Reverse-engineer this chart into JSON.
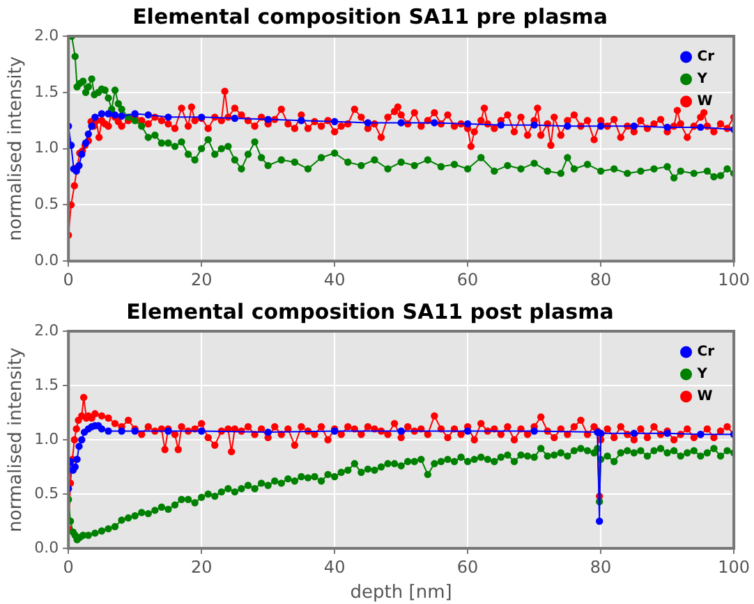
{
  "chart_data": [
    {
      "type": "line",
      "title": "Elemental composition SA11 pre plasma",
      "ylabel": "normalised intensity",
      "xlim": [
        0,
        100
      ],
      "xticks": [
        0,
        20,
        40,
        60,
        80,
        100
      ],
      "ylim": [
        0,
        2
      ],
      "yticks": [
        {
          "value": 0,
          "label": "0.0"
        },
        {
          "value": 0.5,
          "label": "0.5"
        },
        {
          "value": 1,
          "label": "1.0"
        },
        {
          "value": 1.5,
          "label": "1.5"
        },
        {
          "value": 2,
          "label": "2.0"
        }
      ],
      "grid": true,
      "legend": "top right",
      "marker": "circle",
      "line_style": "solid",
      "series": [
        {
          "name": "Cr",
          "color": "#0000ff",
          "x": [
            0,
            0.4,
            0.8,
            1.2,
            1.6,
            2,
            2.6,
            3,
            3.5,
            4,
            5,
            6,
            7,
            8,
            10,
            12,
            15,
            20,
            25,
            30,
            35,
            40,
            45,
            50,
            55,
            60,
            65,
            70,
            75,
            80,
            85,
            90,
            95,
            100
          ],
          "values": [
            1.2,
            1.03,
            0.82,
            0.8,
            0.85,
            0.95,
            1.05,
            1.13,
            1.2,
            1.28,
            1.31,
            1.31,
            1.3,
            1.29,
            1.31,
            1.3,
            1.28,
            1.28,
            1.27,
            1.26,
            1.25,
            1.24,
            1.23,
            1.23,
            1.23,
            1.22,
            1.21,
            1.21,
            1.2,
            1.2,
            1.2,
            1.19,
            1.19,
            1.17
          ]
        },
        {
          "name": "Y",
          "color": "#008000",
          "x": [
            0.5,
            1,
            1.3,
            1.7,
            2.2,
            2.6,
            3,
            3.5,
            3.9,
            4.5,
            5,
            5.5,
            6,
            6.5,
            7,
            7.5,
            8,
            9,
            10,
            11,
            12,
            13,
            14,
            15,
            16,
            17,
            18,
            19,
            20,
            21,
            22,
            23,
            24,
            25,
            26,
            27,
            28,
            29,
            30,
            32,
            34,
            36,
            38,
            40,
            42,
            44,
            46,
            48,
            50,
            52,
            54,
            56,
            58,
            60,
            62,
            64,
            66,
            68,
            70,
            72,
            74,
            75,
            76,
            78,
            80,
            82,
            84,
            86,
            88,
            90,
            91,
            92,
            94,
            96,
            97,
            98,
            99,
            100
          ],
          "values": [
            2.0,
            1.82,
            1.55,
            1.58,
            1.6,
            1.5,
            1.55,
            1.62,
            1.48,
            1.5,
            1.53,
            1.52,
            1.45,
            1.35,
            1.52,
            1.4,
            1.35,
            1.28,
            1.25,
            1.2,
            1.1,
            1.12,
            1.05,
            1.05,
            1.02,
            1.06,
            0.95,
            0.9,
            1.0,
            1.08,
            0.95,
            1.0,
            1.02,
            0.9,
            0.82,
            0.95,
            1.06,
            0.92,
            0.85,
            0.9,
            0.88,
            0.82,
            0.92,
            0.96,
            0.88,
            0.85,
            0.9,
            0.82,
            0.88,
            0.85,
            0.9,
            0.84,
            0.86,
            0.82,
            0.92,
            0.8,
            0.85,
            0.82,
            0.87,
            0.8,
            0.78,
            0.92,
            0.82,
            0.86,
            0.8,
            0.82,
            0.78,
            0.8,
            0.82,
            0.84,
            0.74,
            0.8,
            0.78,
            0.8,
            0.75,
            0.76,
            0.82,
            0.78
          ]
        },
        {
          "name": "W",
          "color": "#ff0000",
          "x": [
            0,
            0.4,
            0.9,
            1.3,
            1.7,
            2.1,
            2.5,
            3,
            3.4,
            3.8,
            4.2,
            4.6,
            5,
            5.5,
            6,
            6.5,
            7,
            7.5,
            8,
            9,
            10,
            11,
            12,
            13,
            14,
            15,
            16,
            17,
            18,
            18.5,
            19,
            20,
            21,
            22,
            23,
            23.5,
            24,
            25,
            26,
            27,
            28,
            29,
            30,
            31,
            32,
            33,
            34,
            35,
            36,
            37,
            38,
            39,
            40,
            41,
            42,
            43,
            44,
            45,
            46,
            47,
            48,
            49,
            49.5,
            50,
            51,
            52,
            53,
            54,
            55,
            56,
            57,
            58,
            59,
            60,
            60.5,
            61,
            62,
            62.5,
            63,
            64,
            65,
            66,
            67,
            68,
            69,
            70,
            70.5,
            71,
            72,
            72.5,
            73,
            74,
            75,
            76,
            77,
            78,
            79,
            80,
            81,
            82,
            83,
            84,
            85,
            86,
            87,
            88,
            89,
            90,
            91,
            91.5,
            92,
            93,
            94,
            95,
            95.5,
            96,
            97,
            98,
            99,
            100
          ],
          "values": [
            0.23,
            0.5,
            0.67,
            0.83,
            0.96,
            0.98,
            1.03,
            1.07,
            1.24,
            1.2,
            1.25,
            1.1,
            1.25,
            1.22,
            1.2,
            1.32,
            1.28,
            1.24,
            1.2,
            1.25,
            1.3,
            1.25,
            1.22,
            1.28,
            1.25,
            1.22,
            1.18,
            1.36,
            1.2,
            1.37,
            1.25,
            1.27,
            1.18,
            1.28,
            1.25,
            1.51,
            1.28,
            1.36,
            1.3,
            1.25,
            1.2,
            1.28,
            1.22,
            1.26,
            1.35,
            1.22,
            1.18,
            1.3,
            1.18,
            1.24,
            1.2,
            1.25,
            1.15,
            1.2,
            1.22,
            1.35,
            1.28,
            1.18,
            1.22,
            1.1,
            1.28,
            1.33,
            1.37,
            1.3,
            1.22,
            1.32,
            1.2,
            1.25,
            1.32,
            1.22,
            1.3,
            1.2,
            1.22,
            1.18,
            1.02,
            1.15,
            1.25,
            1.36,
            1.22,
            1.18,
            1.25,
            1.3,
            1.15,
            1.28,
            1.12,
            1.25,
            1.36,
            1.12,
            1.22,
            1.03,
            1.28,
            1.12,
            1.25,
            1.3,
            1.2,
            1.25,
            1.08,
            1.25,
            1.2,
            1.26,
            1.1,
            1.2,
            1.15,
            1.25,
            1.18,
            1.22,
            1.26,
            1.15,
            1.2,
            1.34,
            1.22,
            1.1,
            1.2,
            1.28,
            1.32,
            1.2,
            1.15,
            1.22,
            1.18,
            1.28
          ]
        }
      ]
    },
    {
      "type": "line",
      "title": "Elemental composition SA11 post plasma",
      "xlabel": "depth [nm]",
      "ylabel": "normalised intensity",
      "xlim": [
        0,
        100
      ],
      "xticks": [
        0,
        20,
        40,
        60,
        80,
        100
      ],
      "ylim": [
        0,
        2
      ],
      "yticks": [
        {
          "value": 0,
          "label": "0.0"
        },
        {
          "value": 0.5,
          "label": "0.5"
        },
        {
          "value": 1,
          "label": "1.0"
        },
        {
          "value": 1.5,
          "label": "1.5"
        },
        {
          "value": 2,
          "label": "2.0"
        }
      ],
      "grid": true,
      "legend": "top right",
      "marker": "circle",
      "line_style": "solid",
      "series": [
        {
          "name": "Cr",
          "color": "#0000ff",
          "x": [
            0,
            0.3,
            0.7,
            1,
            1.3,
            1.6,
            2,
            2.4,
            3,
            3.5,
            4,
            4.5,
            5,
            6,
            8,
            10,
            15,
            20,
            30,
            40,
            50,
            60,
            70,
            79.5,
            79.8,
            80,
            85,
            90,
            95,
            100
          ],
          "values": [
            0.55,
            0.8,
            0.72,
            0.75,
            0.82,
            0.94,
            1.0,
            1.07,
            1.1,
            1.12,
            1.13,
            1.13,
            1.1,
            1.08,
            1.08,
            1.08,
            1.08,
            1.08,
            1.07,
            1.08,
            1.08,
            1.08,
            1.08,
            1.07,
            0.25,
            1.06,
            1.06,
            1.06,
            1.05,
            1.05
          ]
        },
        {
          "name": "Y",
          "color": "#008000",
          "x": [
            0,
            0.3,
            0.7,
            1,
            1.3,
            1.7,
            2.2,
            3,
            4,
            5,
            6,
            7,
            8,
            9,
            10,
            11,
            12,
            13,
            14,
            15,
            16,
            17,
            18,
            19,
            20,
            21,
            22,
            23,
            24,
            25,
            26,
            27,
            28,
            29,
            30,
            31,
            32,
            33,
            34,
            35,
            36,
            37,
            38,
            39,
            40,
            41,
            42,
            43,
            44,
            45,
            46,
            47,
            48,
            49,
            50,
            51,
            52,
            53,
            54,
            55,
            56,
            57,
            58,
            59,
            60,
            61,
            62,
            63,
            64,
            65,
            66,
            67,
            68,
            69,
            70,
            71,
            72,
            73,
            74,
            75,
            76,
            77,
            78,
            79,
            79.5,
            79.8,
            80,
            81,
            82,
            83,
            84,
            85,
            86,
            87,
            88,
            89,
            90,
            91,
            92,
            93,
            94,
            95,
            96,
            97,
            98,
            99,
            100
          ],
          "values": [
            0.45,
            0.25,
            0.15,
            0.12,
            0.08,
            0.1,
            0.12,
            0.12,
            0.14,
            0.16,
            0.18,
            0.2,
            0.26,
            0.28,
            0.3,
            0.33,
            0.32,
            0.35,
            0.38,
            0.36,
            0.4,
            0.45,
            0.45,
            0.42,
            0.47,
            0.5,
            0.48,
            0.52,
            0.55,
            0.52,
            0.55,
            0.58,
            0.55,
            0.6,
            0.58,
            0.62,
            0.6,
            0.64,
            0.62,
            0.66,
            0.65,
            0.66,
            0.62,
            0.68,
            0.66,
            0.7,
            0.72,
            0.78,
            0.7,
            0.73,
            0.72,
            0.75,
            0.78,
            0.78,
            0.76,
            0.8,
            0.8,
            0.82,
            0.68,
            0.78,
            0.8,
            0.82,
            0.8,
            0.84,
            0.8,
            0.82,
            0.84,
            0.82,
            0.8,
            0.84,
            0.86,
            0.8,
            0.86,
            0.85,
            0.84,
            0.92,
            0.85,
            0.86,
            0.88,
            0.85,
            0.9,
            0.92,
            0.9,
            0.88,
            0.92,
            0.43,
            0.82,
            0.85,
            0.8,
            0.88,
            0.9,
            0.88,
            0.9,
            0.85,
            0.9,
            0.92,
            0.88,
            0.9,
            0.85,
            0.88,
            0.9,
            0.85,
            0.88,
            0.92,
            0.85,
            0.9,
            0.88
          ]
        },
        {
          "name": "W",
          "color": "#ff0000",
          "x": [
            0,
            0.3,
            0.6,
            0.9,
            1.2,
            1.5,
            2,
            2.3,
            2.7,
            3,
            3.5,
            4,
            5,
            6,
            7,
            8,
            9,
            10,
            11,
            12,
            13,
            14,
            14.5,
            15,
            16,
            16.5,
            17,
            18,
            19,
            20,
            21,
            22,
            23,
            24,
            24.5,
            25,
            26,
            27,
            28,
            29,
            30,
            31,
            32,
            33,
            34,
            35,
            36,
            37,
            38,
            39,
            40,
            41,
            42,
            43,
            44,
            45,
            46,
            47,
            48,
            49,
            50,
            51,
            52,
            53,
            54,
            55,
            56,
            57,
            58,
            59,
            60,
            61,
            62,
            63,
            64,
            65,
            66,
            67,
            68,
            69,
            70,
            71,
            72,
            73,
            74,
            75,
            76,
            77,
            78,
            79,
            79.5,
            79.8,
            80,
            81,
            82,
            83,
            84,
            85,
            86,
            87,
            88,
            89,
            90,
            91,
            92,
            93,
            94,
            95,
            96,
            97,
            98,
            99,
            100
          ],
          "values": [
            0.18,
            0.6,
            0.82,
            1.0,
            1.1,
            1.18,
            1.22,
            1.39,
            1.2,
            1.22,
            1.2,
            1.24,
            1.22,
            1.2,
            1.15,
            1.12,
            1.18,
            1.1,
            1.05,
            1.12,
            1.08,
            1.1,
            0.91,
            1.1,
            1.05,
            0.91,
            1.12,
            1.08,
            1.1,
            1.15,
            1.02,
            0.95,
            1.08,
            1.1,
            0.89,
            1.1,
            1.08,
            1.12,
            1.05,
            1.1,
            1.02,
            1.12,
            1.05,
            1.1,
            0.95,
            1.12,
            1.08,
            1.05,
            1.12,
            1.0,
            1.1,
            1.05,
            1.12,
            1.1,
            1.05,
            1.12,
            1.1,
            1.08,
            1.05,
            1.15,
            1.02,
            1.12,
            1.08,
            1.1,
            1.05,
            1.22,
            1.1,
            1.02,
            1.1,
            1.05,
            1.12,
            1.0,
            1.15,
            1.08,
            1.1,
            1.05,
            1.12,
            1.0,
            1.1,
            1.05,
            1.12,
            1.21,
            1.08,
            1.02,
            1.1,
            1.05,
            1.12,
            1.18,
            1.05,
            1.12,
            1.08,
            0.48,
            1.0,
            1.1,
            1.02,
            1.12,
            1.05,
            1.0,
            1.1,
            1.02,
            1.12,
            1.05,
            1.08,
            1.0,
            1.05,
            1.1,
            1.02,
            1.05,
            1.1,
            1.02,
            1.08,
            1.12,
            1.05
          ]
        }
      ]
    }
  ]
}
